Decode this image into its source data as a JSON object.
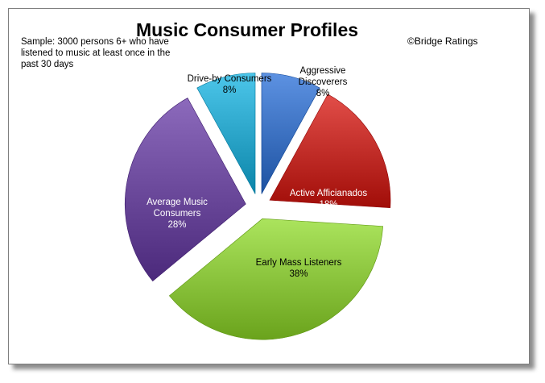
{
  "chart_data": {
    "type": "pie",
    "title": "Music Consumer Profiles",
    "note": "Sample: 3000 persons 6+ who have listened to music at least once in the past 30 days",
    "source": "©Bridge Ratings",
    "slices": [
      {
        "label_lines": [
          "Aggressive",
          "Discoverers"
        ],
        "value": 8,
        "value_label": "8%",
        "color": "#3f74c4"
      },
      {
        "label_lines": [
          "Active Afficianados"
        ],
        "value": 18,
        "value_label": "18%",
        "color": "#c4302b"
      },
      {
        "label_lines": [
          "Early Mass Listeners"
        ],
        "value": 38,
        "value_label": "38%",
        "color": "#8dc63f"
      },
      {
        "label_lines": [
          "Average Music",
          "Consumers"
        ],
        "value": 28,
        "value_label": "28%",
        "color": "#6e4c9e"
      },
      {
        "label_lines": [
          "Drive-by Consumers"
        ],
        "value": 8,
        "value_label": "8%",
        "color": "#2ea8cc"
      }
    ],
    "exploded": true,
    "legend": "none"
  }
}
